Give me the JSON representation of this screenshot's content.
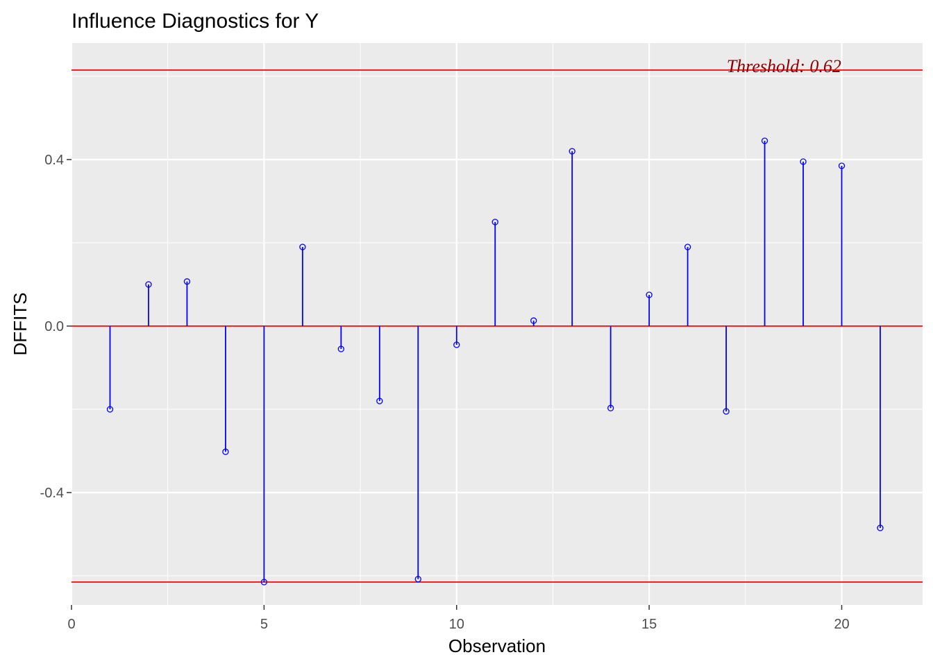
{
  "chart_data": {
    "type": "scatter",
    "title": "Influence Diagnostics for Y",
    "xlabel": "Observation",
    "ylabel": "DFFITS",
    "xlim": [
      0,
      22.1
    ],
    "ylim": [
      -0.67,
      0.68
    ],
    "x_ticks": [
      0,
      5,
      10,
      15,
      20
    ],
    "x_tick_labels": [
      "0",
      "5",
      "10",
      "15",
      "20"
    ],
    "y_ticks": [
      -0.4,
      0.0,
      0.4
    ],
    "y_tick_labels": [
      "-0.4",
      "0.0",
      "0.4"
    ],
    "grid": true,
    "threshold": 0.615,
    "threshold_label": "Threshold: 0.62",
    "colors": {
      "panel": "#ebebeb",
      "grid": "#ffffff",
      "stem": "#0000ff",
      "reference_line": "#ff0000",
      "annotation": "#8b0000"
    },
    "series": [
      {
        "x": [
          1,
          2,
          3,
          4,
          5,
          6,
          7,
          8,
          9,
          10,
          11,
          12,
          13,
          14,
          15,
          16,
          17,
          18,
          19,
          20,
          21
        ],
        "values": [
          -0.2,
          0.1,
          0.107,
          -0.302,
          -0.615,
          0.19,
          -0.055,
          -0.18,
          -0.608,
          -0.045,
          0.25,
          0.013,
          0.42,
          -0.197,
          0.075,
          0.19,
          -0.205,
          0.445,
          0.395,
          0.385,
          -0.485
        ]
      }
    ]
  }
}
